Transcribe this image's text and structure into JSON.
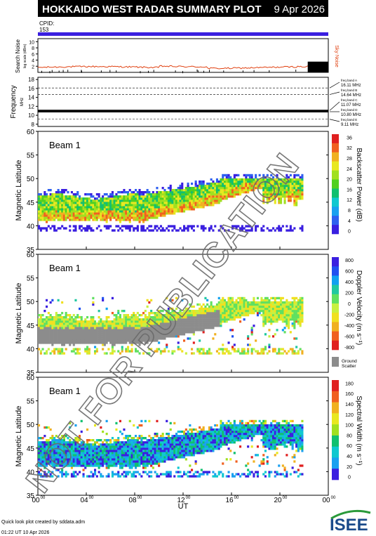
{
  "header": {
    "title": "HOKKAIDO WEST RADAR SUMMARY PLOT",
    "date": "9 Apr 2026",
    "cpid_label": "CPID:",
    "cpid_value": "153"
  },
  "colors": {
    "header_bg": "#000000",
    "header_text": "#ffffff",
    "cpid_bar": "#3a1fe0",
    "noise": "#e04010",
    "ground_scatter": "#8c8c8c"
  },
  "noise_panel": {
    "ylabel": "Search Noise",
    "ylabel_small": "log scale (dBm)",
    "right_label": "Sky Noise",
    "ticks": [
      "2",
      "4",
      "6",
      "8",
      "10"
    ]
  },
  "freq_panel": {
    "ylabel": "Frequency",
    "ylabel_unit": "MHz",
    "ticks": [
      "8",
      "10",
      "12",
      "14",
      "16",
      "18"
    ],
    "bands": [
      {
        "name": "freq band A",
        "value": "16.11 MHz",
        "mhz": 16.11
      },
      {
        "name": "freq band B",
        "value": "14.64 MHz",
        "mhz": 14.64
      },
      {
        "name": "freq band C",
        "value": "11.07 MHz",
        "mhz": 11.07
      },
      {
        "name": "freq band D",
        "value": "10.80 MHz",
        "mhz": 10.8
      },
      {
        "name": "freq band E",
        "value": "9.11 MHz",
        "mhz": 9.11
      }
    ]
  },
  "panels": [
    {
      "beam_label": "Beam  1",
      "ylabel": "Magnetic Latitude",
      "cbar_label": "Backscatter Power (dB)",
      "cbar_ticks": [
        "0",
        "4",
        "8",
        "12",
        "16",
        "20",
        "24",
        "28",
        "32",
        "36"
      ],
      "scheme": "power"
    },
    {
      "beam_label": "Beam  1",
      "ylabel": "Magnetic Latitude",
      "cbar_label": "Doppler Velocity (m s⁻¹)",
      "cbar_ticks": [
        "-800",
        "-600",
        "-400",
        "-200",
        "0",
        "200",
        "400",
        "600",
        "800"
      ],
      "scheme": "velocity",
      "gs_label": "Ground",
      "gs_label2": "Scatter"
    },
    {
      "beam_label": "Beam  1",
      "ylabel": "Magnetic Latitude",
      "cbar_label": "Spectral Width (m s⁻¹)",
      "cbar_ticks": [
        "0",
        "20",
        "40",
        "60",
        "80",
        "100",
        "120",
        "140",
        "160",
        "180"
      ],
      "scheme": "width"
    }
  ],
  "lat_ticks": [
    "35",
    "40",
    "45",
    "50",
    "55",
    "60"
  ],
  "x_axis": {
    "label": "UT",
    "ticks": [
      {
        "h": "00",
        "m": "00"
      },
      {
        "h": "04",
        "m": "00"
      },
      {
        "h": "08",
        "m": "00"
      },
      {
        "h": "12",
        "m": "00"
      },
      {
        "h": "16",
        "m": "00"
      },
      {
        "h": "20",
        "m": "00"
      },
      {
        "h": "00",
        "m": "00"
      }
    ]
  },
  "watermark": "NOT FOR PUBLICATION",
  "footer": {
    "line1": "Quick look plot created by sddata.adm",
    "line2": "01:22 UT 10 Apr 2026",
    "logo": "ISEE"
  },
  "chart_data": {
    "type": "heatmap",
    "x_range_hours": [
      0,
      24
    ],
    "lat_range": [
      35,
      60
    ],
    "bands": [
      {
        "ut": [
          0,
          9
        ],
        "lat_low": 41,
        "lat_high": 47
      },
      {
        "ut": [
          9,
          15
        ],
        "lat_low": 43,
        "lat_high": 49
      },
      {
        "ut": [
          15,
          22
        ],
        "lat_low": 44,
        "lat_high": 50
      }
    ]
  }
}
